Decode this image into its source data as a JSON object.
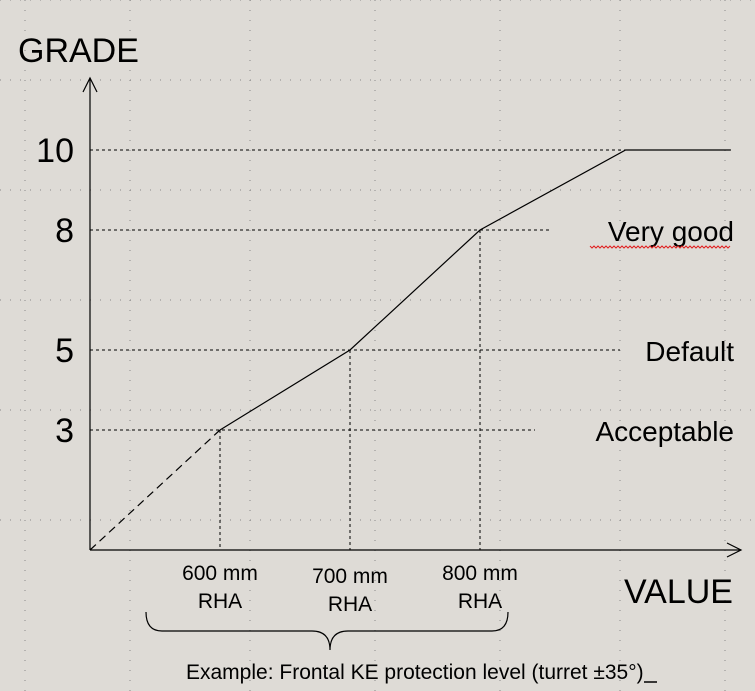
{
  "chart_data": {
    "type": "line",
    "title": "",
    "xlabel": "VALUE",
    "ylabel": "GRADE",
    "grid": true,
    "x_unit": "mm RHA",
    "xlim": [
      500,
      900
    ],
    "ylim": [
      0,
      12
    ],
    "y_ticks": [
      {
        "value": 10,
        "label": "10"
      },
      {
        "value": 8,
        "label": "8"
      },
      {
        "value": 5,
        "label": "5"
      },
      {
        "value": 3,
        "label": "3"
      }
    ],
    "x_ticks": [
      {
        "value": 600,
        "line1": "600 mm",
        "line2": "RHA"
      },
      {
        "value": 700,
        "line1": "700 mm",
        "line2": "RHA"
      },
      {
        "value": 800,
        "line1": "800 mm",
        "line2": "RHA"
      }
    ],
    "levels": [
      {
        "grade": 8,
        "label": "Very good"
      },
      {
        "grade": 5,
        "label": "Default"
      },
      {
        "grade": 3,
        "label": "Acceptable"
      }
    ],
    "series": [
      {
        "style": "dashed",
        "points": [
          {
            "x": 500,
            "y": 0
          },
          {
            "x": 600,
            "y": 3
          }
        ]
      },
      {
        "style": "solid",
        "points": [
          {
            "x": 600,
            "y": 3
          },
          {
            "x": 700,
            "y": 5
          },
          {
            "x": 800,
            "y": 8
          },
          {
            "x": 912,
            "y": 10
          },
          {
            "x": 993,
            "y": 10
          }
        ]
      }
    ],
    "annotation": "Example: Frontal KE protection level (turret ±35°)"
  }
}
